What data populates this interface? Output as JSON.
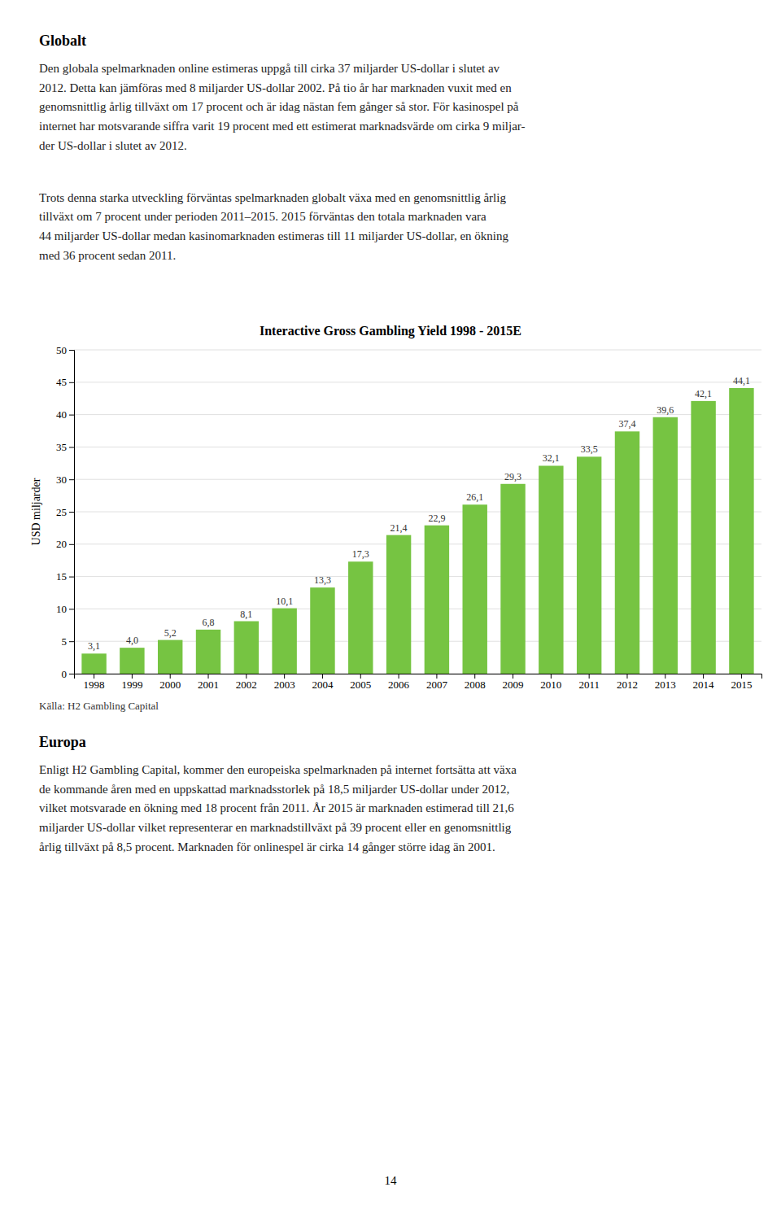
{
  "chart_data": {
    "type": "bar",
    "title": "Interactive Gross Gambling Yield 1998 - 2015E",
    "ylabel": "USD miljarder",
    "categories": [
      1998,
      1999,
      2000,
      2001,
      2002,
      2003,
      2004,
      2005,
      2006,
      2007,
      2008,
      2009,
      2010,
      2011,
      2012,
      2013,
      2014,
      2015
    ],
    "values": [
      3.1,
      4.0,
      5.2,
      6.8,
      8.1,
      10.1,
      13.3,
      17.3,
      21.4,
      22.9,
      26.1,
      29.3,
      32.1,
      33.5,
      37.4,
      39.6,
      42.1,
      44.1
    ],
    "value_labels": [
      "3,1",
      "4,0",
      "5,2",
      "6,8",
      "8,1",
      "10,1",
      "13,3",
      "17,3",
      "21,4",
      "22,9",
      "26,1",
      "29,3",
      "32,1",
      "33,5",
      "37,4",
      "39,6",
      "42,1",
      "44,1"
    ],
    "data_labels": true,
    "color": "#76c442",
    "ylim": [
      0,
      50
    ],
    "yticks": [
      0,
      5,
      10,
      15,
      20,
      25,
      30,
      35,
      40,
      45,
      50
    ],
    "grid": true,
    "annotations": [
      "Källa: H2 Gambling Capital"
    ]
  },
  "page": {
    "sections": [
      {
        "heading": "Globalt",
        "paragraphs": [
          [
            "Den globala spelmarknaden online estimeras uppgå till cirka 37 miljarder US-dollar i slutet av",
            "2012. Detta kan jämföras med 8 miljarder US-dollar 2002. På tio år har marknaden vuxit med en",
            "genomsnittlig årlig tillväxt om 17 procent och är idag nästan fem gånger så stor. För kasinospel på",
            "internet har motsvarande siffra varit 19 procent med ett estimerat marknadsvärde om cirka 9 miljar-",
            "der US-dollar i slutet av 2012."
          ],
          [
            "Trots denna starka utveckling förväntas spelmarknaden globalt växa med en genomsnittlig årlig",
            "tillväxt om 7 procent under perioden 2011–2015. 2015 förväntas den totala marknaden vara",
            "44 miljarder US-dollar medan kasinomarknaden estimeras till 11 miljarder US-dollar, en ökning",
            "med 36 procent sedan 2011."
          ]
        ]
      },
      {
        "heading": "Europa",
        "paragraphs": [
          [
            "Enligt H2 Gambling Capital, kommer den europeiska spelmarknaden på internet fortsätta att växa",
            "de kommande åren med en uppskattad marknadsstorlek på 18,5 miljarder US-dollar under 2012,",
            "vilket motsvarade en ökning med 18 procent från 2011. År 2015 är marknaden estimerad till 21,6",
            "miljarder US-dollar vilket representerar en marknadstillväxt på 39 procent eller en genomsnittlig",
            "årlig tillväxt på 8,5 procent. Marknaden för onlinespel är cirka 14 gånger större idag än 2001."
          ]
        ]
      }
    ],
    "page_number": "14"
  }
}
